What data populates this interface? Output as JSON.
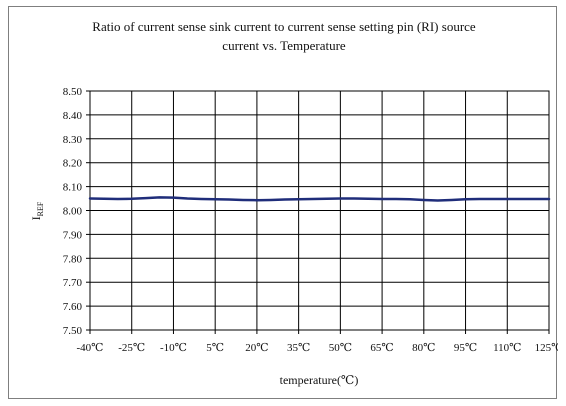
{
  "chart_data": {
    "type": "line",
    "title_lines": [
      "Ratio of current sense sink current to current sense setting pin (RI) source",
      "current vs. Temperature"
    ],
    "xlabel": "temperature(℃)",
    "ylabel_main": "I",
    "ylabel_sub": "REF",
    "xlim": [
      -40,
      125
    ],
    "ylim": [
      7.5,
      8.5
    ],
    "y_ticks": [
      7.5,
      7.6,
      7.7,
      7.8,
      7.9,
      8.0,
      8.1,
      8.2,
      8.3,
      8.4,
      8.5
    ],
    "y_tick_labels": [
      "7.50",
      "7.60",
      "7.70",
      "7.80",
      "7.90",
      "8.00",
      "8.10",
      "8.20",
      "8.30",
      "8.40",
      "8.50"
    ],
    "x_ticks": [
      -40,
      -25,
      -10,
      5,
      20,
      35,
      50,
      65,
      80,
      95,
      110,
      125
    ],
    "x_tick_labels": [
      "-40℃",
      "-25℃",
      "-10℃",
      "5℃",
      "20℃",
      "35℃",
      "50℃",
      "65℃",
      "80℃",
      "95℃",
      "110℃",
      "125℃"
    ],
    "grid": true,
    "series": [
      {
        "color": "#1f2d7a",
        "x": [
          -40,
          -35,
          -30,
          -25,
          -20,
          -15,
          -10,
          -5,
          0,
          5,
          10,
          15,
          20,
          25,
          30,
          35,
          40,
          45,
          50,
          55,
          60,
          65,
          70,
          75,
          80,
          85,
          90,
          95,
          100,
          105,
          110,
          115,
          120,
          125
        ],
        "y": [
          8.05,
          8.049,
          8.048,
          8.049,
          8.052,
          8.055,
          8.054,
          8.05,
          8.048,
          8.047,
          8.046,
          8.044,
          8.043,
          8.044,
          8.046,
          8.047,
          8.048,
          8.049,
          8.05,
          8.05,
          8.049,
          8.048,
          8.048,
          8.047,
          8.044,
          8.042,
          8.044,
          8.047,
          8.048,
          8.048,
          8.048,
          8.048,
          8.048,
          8.048
        ]
      }
    ]
  }
}
